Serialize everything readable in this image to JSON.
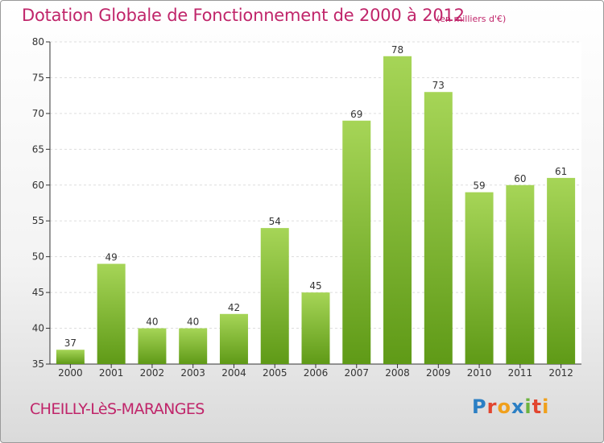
{
  "header": {
    "title": "Dotation Globale de Fonctionnement de 2000 à 2012",
    "unit": "(en milliers d'€)"
  },
  "footer": {
    "commune": "CHEILLY-LèS-MARANGES",
    "logo": "Proxiti"
  },
  "colors": {
    "title": "#c0256a",
    "bar_light": "#a6d557",
    "bar_dark": "#5f9a17",
    "axis": "#333333"
  },
  "chart_data": {
    "type": "bar",
    "title": "Dotation Globale de Fonctionnement de 2000 à 2012",
    "subtitle": "(en milliers d'€)",
    "xlabel": "",
    "ylabel": "",
    "categories": [
      "2000",
      "2001",
      "2002",
      "2003",
      "2004",
      "2005",
      "2006",
      "2007",
      "2008",
      "2009",
      "2010",
      "2011",
      "2012"
    ],
    "values": [
      37,
      49,
      40,
      40,
      42,
      54,
      45,
      69,
      78,
      73,
      59,
      60,
      61
    ],
    "ylim": [
      35,
      80
    ],
    "yticks": [
      35,
      40,
      45,
      50,
      55,
      60,
      65,
      70,
      75,
      80
    ],
    "grid": true,
    "legend": "none"
  }
}
